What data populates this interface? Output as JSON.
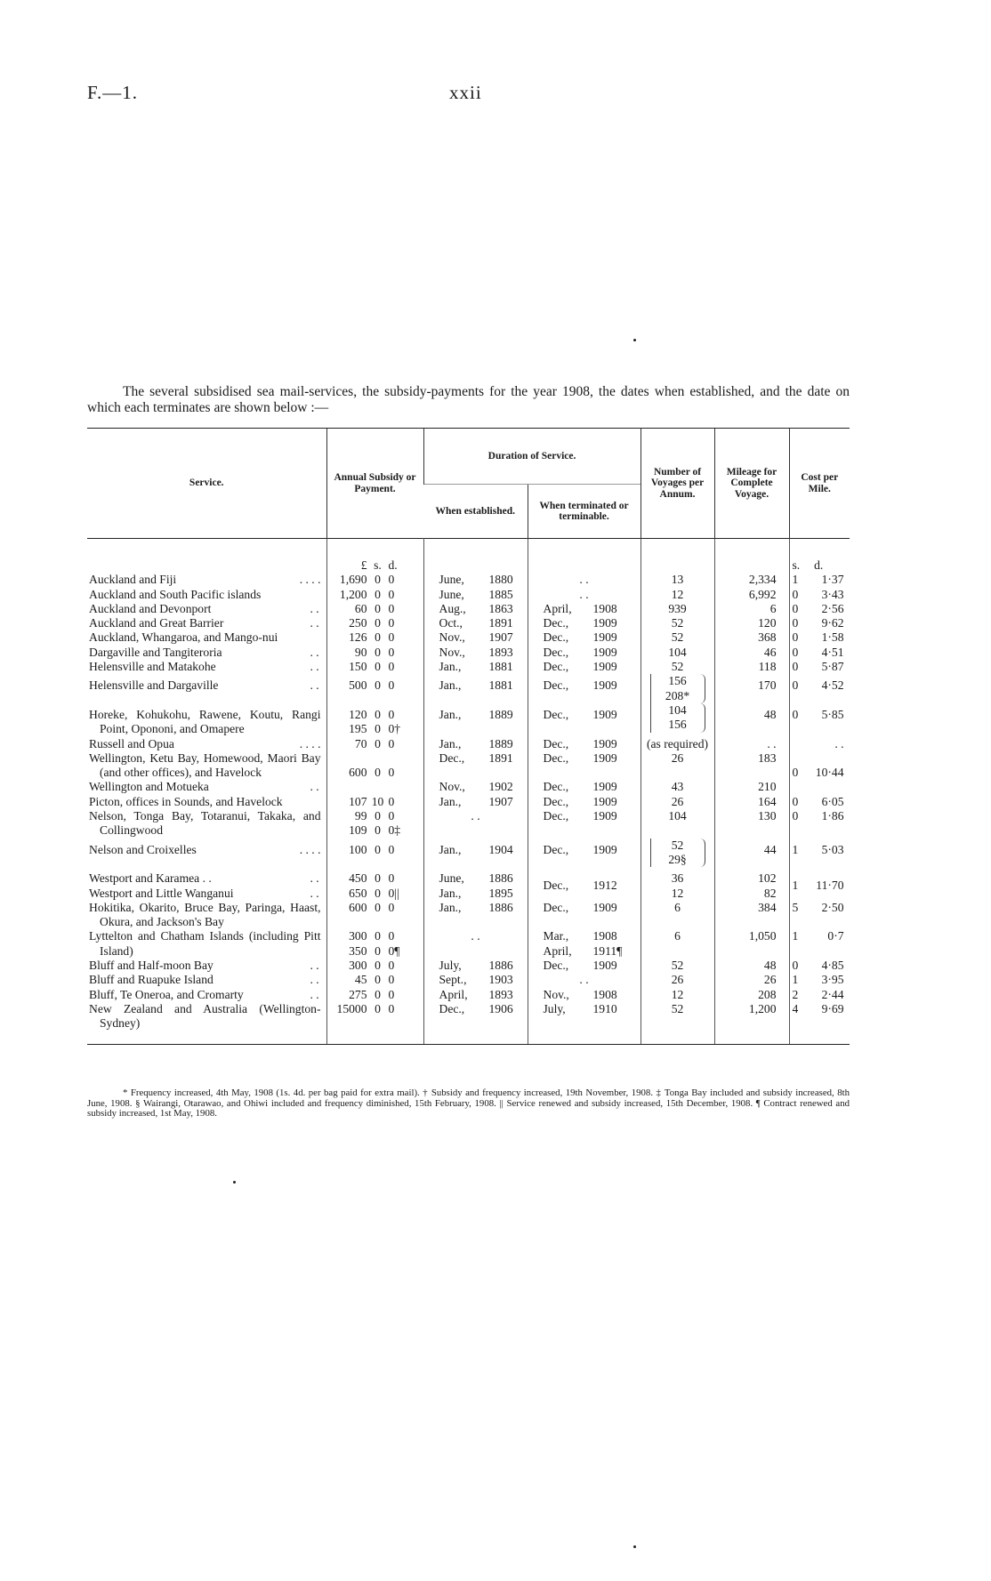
{
  "header": {
    "ref": "F.—1.",
    "page": "xxii"
  },
  "intro": "The several subsidised sea mail-services, the subsidy-payments for the year 1908, the dates when established, and the date on which each terminates are shown below :—",
  "table": {
    "headers": {
      "service": "Service.",
      "subsidy": "Annual Subsidy or Payment.",
      "duration": "Duration of Service.",
      "established": "When established.",
      "terminated": "When terminated or terminable.",
      "voyages": "Number of Voyages per Annum.",
      "mileage": "Mileage for Complete Voyage.",
      "cost": "Cost per Mile."
    },
    "units": {
      "pound": "£",
      "shillings": "s.",
      "pence": "d.",
      "cost_s": "s.",
      "cost_d": "d."
    },
    "rows": [
      {
        "service": "Auckland and Fiji",
        "dots": ". .      . .",
        "subsidy": [
          [
            "1,690",
            "0",
            "0"
          ]
        ],
        "established": [
          [
            "June,",
            "1880"
          ]
        ],
        "terminated": [
          [
            ". .",
            ""
          ]
        ],
        "voyages": [
          "13"
        ],
        "mileage": [
          "2,334"
        ],
        "cost": [
          "1",
          "1·37"
        ]
      },
      {
        "service": "Auckland and South Pacific islands",
        "subsidy": [
          [
            "1,200",
            "0",
            "0"
          ]
        ],
        "established": [
          [
            "June,",
            "1885"
          ]
        ],
        "terminated": [
          [
            ". .",
            ""
          ]
        ],
        "voyages": [
          "12"
        ],
        "mileage": [
          "6,992"
        ],
        "cost": [
          "0",
          "3·43"
        ]
      },
      {
        "service": "Auckland and Devonport",
        "dots": ". .",
        "subsidy": [
          [
            "60",
            "0",
            "0"
          ]
        ],
        "established": [
          [
            "Aug.,",
            "1863"
          ]
        ],
        "terminated": [
          [
            "April,",
            "1908"
          ]
        ],
        "voyages": [
          "939"
        ],
        "mileage": [
          "6"
        ],
        "cost": [
          "0",
          "2·56"
        ]
      },
      {
        "service": "Auckland and Great Barrier",
        "dots": ". .",
        "subsidy": [
          [
            "250",
            "0",
            "0"
          ]
        ],
        "established": [
          [
            "Oct.,",
            "1891"
          ]
        ],
        "terminated": [
          [
            "Dec.,",
            "1909"
          ]
        ],
        "voyages": [
          "52"
        ],
        "mileage": [
          "120"
        ],
        "cost": [
          "0",
          "9·62"
        ]
      },
      {
        "service": "Auckland, Whangaroa, and Mango-nui",
        "subsidy": [
          [
            "126",
            "0",
            "0"
          ]
        ],
        "established": [
          [
            "Nov.,",
            "1907"
          ]
        ],
        "terminated": [
          [
            "Dec.,",
            "1909"
          ]
        ],
        "voyages": [
          "52"
        ],
        "mileage": [
          "368"
        ],
        "cost": [
          "0",
          "1·58"
        ]
      },
      {
        "service": "Dargaville and Tangiteroria",
        "dots": ". .",
        "subsidy": [
          [
            "90",
            "0",
            "0"
          ]
        ],
        "established": [
          [
            "Nov.,",
            "1893"
          ]
        ],
        "terminated": [
          [
            "Dec.,",
            "1909"
          ]
        ],
        "voyages": [
          "104"
        ],
        "mileage": [
          "46"
        ],
        "cost": [
          "0",
          "4·51"
        ]
      },
      {
        "service": "Helensville and Matakohe",
        "dots": ". .",
        "subsidy": [
          [
            "150",
            "0",
            "0"
          ]
        ],
        "established": [
          [
            "Jan.,",
            "1881"
          ]
        ],
        "terminated": [
          [
            "Dec.,",
            "1909"
          ]
        ],
        "voyages": [
          "52"
        ],
        "mileage": [
          "118"
        ],
        "cost": [
          "0",
          "5·87"
        ]
      },
      {
        "service": "Helensville and Dargaville",
        "dots": ". .",
        "subsidy": [
          [
            "500",
            "0",
            "0"
          ]
        ],
        "established": [
          [
            "Jan.,",
            "1881"
          ]
        ],
        "terminated": [
          [
            "Dec.,",
            "1909"
          ]
        ],
        "voyages": [
          "156",
          "208*"
        ],
        "mileage": [
          "170"
        ],
        "cost": [
          "0",
          "4·52"
        ]
      },
      {
        "service": "Horeke, Kohukohu, Rawene, Koutu, Rangi Point, Opononi, and Omapere",
        "subsidy": [
          [
            "120",
            "0",
            "0"
          ],
          [
            "195",
            "0",
            "0†"
          ]
        ],
        "established": [
          [
            "Jan.,",
            "1889"
          ]
        ],
        "terminated": [
          [
            "Dec.,",
            "1909"
          ]
        ],
        "voyages": [
          "104",
          "156"
        ],
        "mileage": [
          "48"
        ],
        "cost": [
          "0",
          "5·85"
        ]
      },
      {
        "service": "Russell and Opua",
        "dots": ". .      . .",
        "subsidy": [
          [
            "70",
            "0",
            "0"
          ]
        ],
        "established": [
          [
            "Jan.,",
            "1889"
          ]
        ],
        "terminated": [
          [
            "Dec.,",
            "1909"
          ]
        ],
        "voyages": [
          "(as required)"
        ],
        "mileage": [
          ". ."
        ],
        "cost": [
          "",
          ". ."
        ]
      },
      {
        "service": "Wellington, Ketu Bay, Homewood, Maori Bay (and other offices), and Havelock",
        "subsidy": [
          [
            "600",
            "0",
            "0"
          ]
        ],
        "subsidy_rowspan": 2,
        "established": [
          [
            "Dec.,",
            "1891"
          ]
        ],
        "terminated": [
          [
            "Dec.,",
            "1909"
          ]
        ],
        "voyages": [
          "26"
        ],
        "mileage": [
          "183"
        ],
        "cost": [
          "0",
          "10·44"
        ],
        "cost_rowspan": 2
      },
      {
        "service": "Wellington and Motueka",
        "dots": ". .",
        "established": [
          [
            "Nov.,",
            "1902"
          ]
        ],
        "terminated": [
          [
            "Dec.,",
            "1909"
          ]
        ],
        "voyages": [
          "43"
        ],
        "mileage": [
          "210"
        ]
      },
      {
        "service": "Picton, offices in Sounds, and Havelock",
        "subsidy": [
          [
            "107",
            "10",
            "0"
          ]
        ],
        "established": [
          [
            "Jan.,",
            "1907"
          ]
        ],
        "terminated": [
          [
            "Dec.,",
            "1909"
          ]
        ],
        "voyages": [
          "26"
        ],
        "mileage": [
          "164"
        ],
        "cost": [
          "0",
          "6·05"
        ]
      },
      {
        "service": "Nelson, Tonga Bay, Totaranui, Takaka, and Collingwood",
        "subsidy": [
          [
            "99",
            "0",
            "0"
          ],
          [
            "109",
            "0",
            "0‡"
          ]
        ],
        "established": [
          [
            ". .",
            ""
          ]
        ],
        "terminated": [
          [
            "Dec.,",
            "1909"
          ]
        ],
        "voyages": [
          "104"
        ],
        "mileage": [
          "130"
        ],
        "cost": [
          "0",
          "1·86"
        ]
      },
      {
        "service": "Nelson and Croixelles",
        "dots": ". .      . .",
        "subsidy": [
          [
            "100",
            "0",
            "0"
          ]
        ],
        "established": [
          [
            "Jan.,",
            "1904"
          ]
        ],
        "terminated": [
          [
            "Dec.,",
            "1909"
          ]
        ],
        "voyages": [
          "52",
          "29§"
        ],
        "mileage": [
          "44"
        ],
        "cost": [
          "1",
          "5·03"
        ]
      },
      {
        "service": "Westport and Karamea . .",
        "dots": ". .",
        "subsidy": [
          [
            "450",
            "0",
            "0"
          ]
        ],
        "established": [
          [
            "June,",
            "1886"
          ]
        ],
        "terminated": [
          [
            "Dec.,",
            "1912"
          ]
        ],
        "terminated_rowspan": 2,
        "voyages": [
          "36"
        ],
        "mileage": [
          "102"
        ],
        "cost": [
          "1",
          "11·70"
        ],
        "cost_rowspan": 2
      },
      {
        "service": "Westport and Little Wanganui",
        "dots": ". .",
        "subsidy": [
          [
            "650",
            "0",
            "0||"
          ]
        ],
        "established": [
          [
            "Jan.,",
            "1895"
          ]
        ],
        "voyages": [
          "12"
        ],
        "mileage": [
          "82"
        ]
      },
      {
        "service": "Hokitika, Okarito, Bruce Bay, Paringa, Haast, Okura, and Jackson's Bay",
        "subsidy": [
          [
            "600",
            "0",
            "0"
          ]
        ],
        "established": [
          [
            "Jan.,",
            "1886"
          ]
        ],
        "terminated": [
          [
            "Dec.,",
            "1909"
          ]
        ],
        "voyages": [
          "6"
        ],
        "mileage": [
          "384"
        ],
        "cost": [
          "5",
          "2·50"
        ]
      },
      {
        "service": "Lyttelton and Chatham Islands (including Pitt Island)",
        "subsidy": [
          [
            "300",
            "0",
            "0"
          ],
          [
            "350",
            "0",
            "0¶"
          ]
        ],
        "established": [
          [
            ". .",
            ""
          ]
        ],
        "terminated": [
          [
            "Mar.,",
            "1908"
          ],
          [
            "April,",
            "1911¶"
          ]
        ],
        "voyages": [
          "6"
        ],
        "mileage": [
          "1,050"
        ],
        "cost": [
          "1",
          "0·7"
        ]
      },
      {
        "service": "Bluff and Half-moon Bay",
        "dots": ". .",
        "subsidy": [
          [
            "300",
            "0",
            "0"
          ]
        ],
        "established": [
          [
            "July,",
            "1886"
          ]
        ],
        "terminated": [
          [
            "Dec.,",
            "1909"
          ]
        ],
        "voyages": [
          "52"
        ],
        "mileage": [
          "48"
        ],
        "cost": [
          "0",
          "4·85"
        ]
      },
      {
        "service": "Bluff and Ruapuke Island",
        "dots": ". .",
        "subsidy": [
          [
            "45",
            "0",
            "0"
          ]
        ],
        "established": [
          [
            "Sept.,",
            "1903"
          ]
        ],
        "terminated": [
          [
            ". .",
            ""
          ]
        ],
        "voyages": [
          "26"
        ],
        "mileage": [
          "26"
        ],
        "cost": [
          "1",
          "3·95"
        ]
      },
      {
        "service": "Bluff, Te Oneroa, and Cromarty",
        "dots": ". .",
        "subsidy": [
          [
            "275",
            "0",
            "0"
          ]
        ],
        "established": [
          [
            "April,",
            "1893"
          ]
        ],
        "terminated": [
          [
            "Nov.,",
            "1908"
          ]
        ],
        "voyages": [
          "12"
        ],
        "mileage": [
          "208"
        ],
        "cost": [
          "2",
          "2·44"
        ]
      },
      {
        "service": "New Zealand and Australia (Wellington-Sydney)",
        "subsidy": [
          [
            "15000",
            "0",
            "0"
          ]
        ],
        "established": [
          [
            "Dec.,",
            "1906"
          ]
        ],
        "terminated": [
          [
            "July,",
            "1910"
          ]
        ],
        "voyages": [
          "52"
        ],
        "mileage": [
          "1,200"
        ],
        "cost": [
          "4",
          "9·69"
        ]
      }
    ]
  },
  "footnotes": "* Frequency increased, 4th May, 1908 (1s. 4d. per bag paid for extra mail).   † Subsidy and frequency increased, 19th November, 1908.   ‡ Tonga Bay included and subsidy increased, 8th June, 1908.   § Wairangi, Otarawao, and Ohiwi included and frequency diminished, 15th February, 1908.   || Service renewed and subsidy increased, 15th December, 1908.   ¶ Contract renewed and subsidy increased, 1st May, 1908."
}
